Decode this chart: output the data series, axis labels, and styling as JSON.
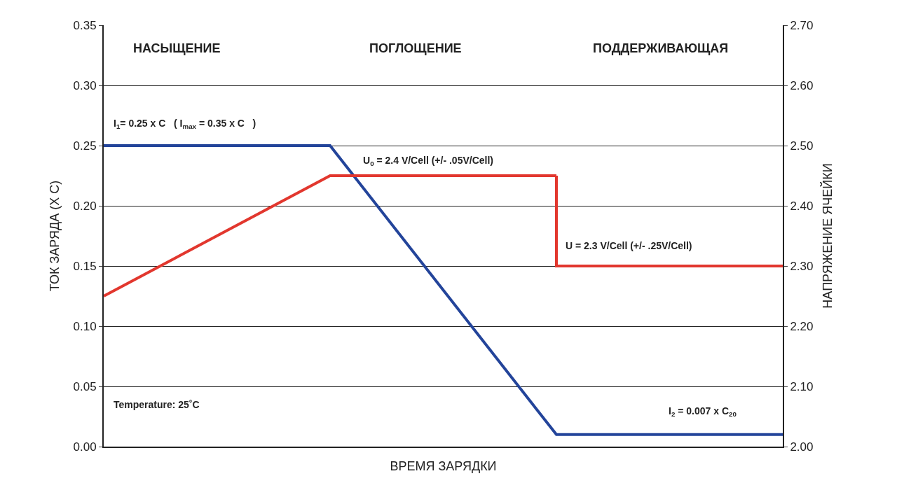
{
  "chart_data": {
    "type": "line",
    "xlabel": "ВРЕМЯ ЗАРЯДКИ",
    "ylabel": "ТОК ЗАРЯДА (X C)",
    "y2label": "НАПРЯЖЕНИЕ ЯЧЕЙКИ",
    "categories": [
      null,
      null,
      null,
      null
    ],
    "series": [
      {
        "color": "#23449a",
        "values": [
          0.25,
          0.25,
          0.01,
          0.01
        ]
      },
      {
        "color": "#e2372e",
        "axis": "y2",
        "values": [
          2.25,
          2.45,
          2.45,
          null
        ]
      },
      {
        "type": "step",
        "color": "#e2372e",
        "axis": "y2",
        "values": [
          null,
          null,
          2.45,
          2.3
        ]
      }
    ],
    "ylim": [
      0,
      0.35
    ],
    "yticks": [
      {
        "value": 0,
        "label": "0.00"
      },
      0.05,
      {
        "value": 0.1,
        "label": "0.10"
      },
      0.15,
      {
        "value": 0.2,
        "label": "0.20"
      },
      0.25,
      {
        "value": 0.3,
        "label": "0.30"
      },
      0.35
    ],
    "y2lim": [
      2.0,
      2.7
    ],
    "y2ticks": [
      {
        "value": 2.0,
        "label": "2.00"
      },
      {
        "value": 2.1,
        "label": "2.10"
      },
      {
        "value": 2.2,
        "label": "2.20"
      },
      {
        "value": 2.3,
        "label": "2.30"
      },
      {
        "value": 2.4,
        "label": "2.40"
      },
      {
        "value": 2.5,
        "label": "2.50"
      },
      {
        "value": 2.6,
        "label": "2.60"
      },
      {
        "value": 2.7,
        "label": "2.70"
      }
    ],
    "grid": "y",
    "marker": "none",
    "line_style": "solid",
    "tick_labels": "y",
    "annotations": [
      "НАСЫЩЕНИЕ",
      "ПОГЛОЩЕНИЕ",
      "ПОДДЕРЖИВАЮЩАЯ",
      "I$_{1}$= 0.25 x C   ( I$_{max}$ = 0.35 x C   )",
      "U$_{0}$ = 2.4 V/Cell (+/- .05V/Cell)",
      "U = 2.3 V/Cell (+/- .25V/Cell)",
      "I$_{2}$ = 0.007 x C$_{20}$",
      "Temperature: 25˚C"
    ]
  }
}
